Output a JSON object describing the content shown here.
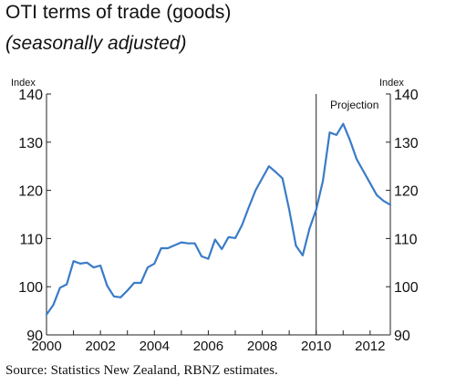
{
  "title": "OTI terms of trade (goods)",
  "subtitle": "(seasonally adjusted)",
  "source": "Source: Statistics New Zealand, RBNZ estimates.",
  "chart_data": {
    "type": "line",
    "title": "OTI terms of trade (goods)",
    "subtitle": "(seasonally adjusted)",
    "ylabel_left": "Index",
    "ylabel_right": "Index",
    "ylim": [
      90,
      140
    ],
    "yticks": [
      90,
      100,
      110,
      120,
      130,
      140
    ],
    "xlim": [
      2000,
      2012.75
    ],
    "xticks": [
      "2000",
      "2002",
      "2004",
      "2006",
      "2008",
      "2010",
      "2012"
    ],
    "grid": false,
    "annotation": {
      "text": "Projection",
      "x": 2010
    },
    "series": [
      {
        "color": "#3a7bc8",
        "x": [
          2000.0,
          2000.25,
          2000.5,
          2000.75,
          2001.0,
          2001.25,
          2001.5,
          2001.75,
          2002.0,
          2002.25,
          2002.5,
          2002.75,
          2003.0,
          2003.25,
          2003.5,
          2003.75,
          2004.0,
          2004.25,
          2004.5,
          2004.75,
          2005.0,
          2005.25,
          2005.5,
          2005.75,
          2006.0,
          2006.25,
          2006.5,
          2006.75,
          2007.0,
          2007.25,
          2007.5,
          2007.75,
          2008.0,
          2008.25,
          2008.5,
          2008.75,
          2009.0,
          2009.25,
          2009.5,
          2009.75,
          2010.0,
          2010.25,
          2010.5,
          2010.75,
          2011.0,
          2011.25,
          2011.5,
          2011.75,
          2012.0,
          2012.25,
          2012.5,
          2012.75
        ],
        "values": [
          94.2,
          96.2,
          99.8,
          100.5,
          105.3,
          104.8,
          105.0,
          104.0,
          104.4,
          100.2,
          98.0,
          97.8,
          99.2,
          100.8,
          100.8,
          104.0,
          104.8,
          108.0,
          108.0,
          108.6,
          109.2,
          109.0,
          109.0,
          106.3,
          105.8,
          109.8,
          107.8,
          110.3,
          110.1,
          112.8,
          116.5,
          120.0,
          122.5,
          125.0,
          123.8,
          122.5,
          116.0,
          108.5,
          106.5,
          112.0,
          116.0,
          122.0,
          132.0,
          131.5,
          133.8,
          130.5,
          126.5,
          124.0,
          121.5,
          119.0,
          117.8,
          117.0
        ]
      }
    ]
  }
}
